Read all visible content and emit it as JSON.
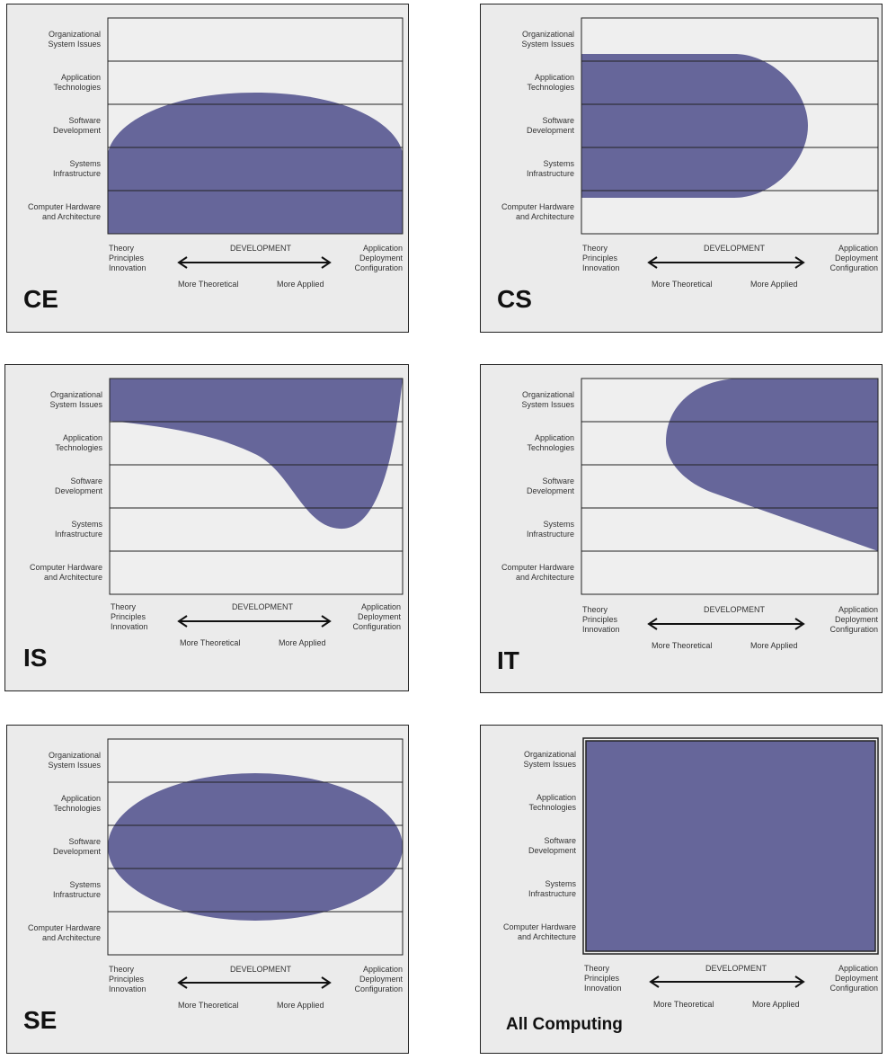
{
  "row_labels": [
    "Organizational\nSystem Issues",
    "Application\nTechnologies",
    "Software\nDevelopment",
    "Systems\nInfrastructure",
    "Computer Hardware\nand Architecture"
  ],
  "x_axis": {
    "left": "Theory\nPrinciples\nInnovation",
    "center": "DEVELOPMENT",
    "right": "Application\nDeployment\nConfiguration",
    "sub_left": "More Theoretical",
    "sub_right": "More Applied"
  },
  "panels": [
    {
      "id": "ce",
      "title": "CE"
    },
    {
      "id": "cs",
      "title": "CS"
    },
    {
      "id": "is",
      "title": "IS"
    },
    {
      "id": "it",
      "title": "IT"
    },
    {
      "id": "se",
      "title": "SE"
    },
    {
      "id": "all",
      "title": "All Computing"
    }
  ],
  "colors": {
    "fill": "#66669a",
    "panel_bg": "#ebebeb",
    "plot_bg": "#efefef",
    "line": "#222222"
  }
}
